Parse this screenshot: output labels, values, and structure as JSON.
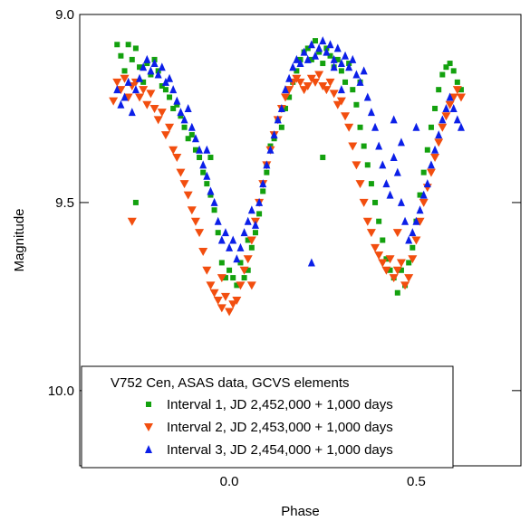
{
  "chart_data": {
    "type": "scatter",
    "title": "",
    "xlabel": "Phase",
    "ylabel": "Magnitude",
    "xlim": [
      -0.4,
      0.78
    ],
    "ylim": [
      9.0,
      10.2
    ],
    "y_inverted": true,
    "x_ticks": [
      {
        "value": 0.0,
        "label": "0.0"
      },
      {
        "value": 0.5,
        "label": "0.5"
      }
    ],
    "y_ticks": [
      {
        "value": 9.0,
        "label": "9.0"
      },
      {
        "value": 9.5,
        "label": "9.5"
      },
      {
        "value": 10.0,
        "label": "10.0"
      }
    ],
    "grid": false,
    "legend": {
      "placement": "bottom-center",
      "title": "V752 Cen, ASAS data, GCVS elements"
    },
    "series": [
      {
        "name": "Interval 1, JD 2,452,000 + 1,000 days",
        "marker": "square",
        "color": "#13a10e",
        "points": [
          [
            -0.3,
            9.08
          ],
          [
            -0.29,
            9.11
          ],
          [
            -0.28,
            9.15
          ],
          [
            -0.27,
            9.08
          ],
          [
            -0.26,
            9.12
          ],
          [
            -0.25,
            9.09
          ],
          [
            -0.24,
            9.14
          ],
          [
            -0.23,
            9.18
          ],
          [
            -0.22,
            9.13
          ],
          [
            -0.21,
            9.16
          ],
          [
            -0.2,
            9.12
          ],
          [
            -0.19,
            9.15
          ],
          [
            -0.18,
            9.19
          ],
          [
            -0.17,
            9.2
          ],
          [
            -0.16,
            9.22
          ],
          [
            -0.15,
            9.25
          ],
          [
            -0.14,
            9.24
          ],
          [
            -0.13,
            9.27
          ],
          [
            -0.12,
            9.3
          ],
          [
            -0.11,
            9.33
          ],
          [
            -0.1,
            9.32
          ],
          [
            -0.09,
            9.36
          ],
          [
            -0.08,
            9.38
          ],
          [
            -0.07,
            9.42
          ],
          [
            -0.06,
            9.45
          ],
          [
            -0.05,
            9.48
          ],
          [
            -0.04,
            9.52
          ],
          [
            -0.03,
            9.58
          ],
          [
            -0.02,
            9.66
          ],
          [
            -0.01,
            9.7
          ],
          [
            0.0,
            9.68
          ],
          [
            0.01,
            9.7
          ],
          [
            0.02,
            9.72
          ],
          [
            0.03,
            9.66
          ],
          [
            0.04,
            9.7
          ],
          [
            0.05,
            9.68
          ],
          [
            0.06,
            9.62
          ],
          [
            0.07,
            9.58
          ],
          [
            0.08,
            9.53
          ],
          [
            0.09,
            9.47
          ],
          [
            0.1,
            9.4
          ],
          [
            0.11,
            9.35
          ],
          [
            0.12,
            9.33
          ],
          [
            0.13,
            9.28
          ],
          [
            0.14,
            9.3
          ],
          [
            0.15,
            9.25
          ],
          [
            0.16,
            9.22
          ],
          [
            0.17,
            9.18
          ],
          [
            0.18,
            9.15
          ],
          [
            0.19,
            9.12
          ],
          [
            0.2,
            9.1
          ],
          [
            0.21,
            9.09
          ],
          [
            0.22,
            9.12
          ],
          [
            0.23,
            9.07
          ],
          [
            0.24,
            9.1
          ],
          [
            0.25,
            9.13
          ],
          [
            0.26,
            9.09
          ],
          [
            0.27,
            9.11
          ],
          [
            0.28,
            9.14
          ],
          [
            0.29,
            9.12
          ],
          [
            0.3,
            9.15
          ],
          [
            0.31,
            9.18
          ],
          [
            0.32,
            9.13
          ],
          [
            0.33,
            9.2
          ],
          [
            0.34,
            9.24
          ],
          [
            0.35,
            9.3
          ],
          [
            0.36,
            9.35
          ],
          [
            0.37,
            9.4
          ],
          [
            0.38,
            9.45
          ],
          [
            0.39,
            9.5
          ],
          [
            0.4,
            9.55
          ],
          [
            0.41,
            9.6
          ],
          [
            0.42,
            9.65
          ],
          [
            0.43,
            9.68
          ],
          [
            0.44,
            9.7
          ],
          [
            0.45,
            9.74
          ],
          [
            0.46,
            9.68
          ],
          [
            0.47,
            9.72
          ],
          [
            0.48,
            9.66
          ],
          [
            0.49,
            9.62
          ],
          [
            0.5,
            9.55
          ],
          [
            0.51,
            9.48
          ],
          [
            0.52,
            9.42
          ],
          [
            0.53,
            9.36
          ],
          [
            0.54,
            9.3
          ],
          [
            0.55,
            9.25
          ],
          [
            0.56,
            9.2
          ],
          [
            0.57,
            9.16
          ],
          [
            0.58,
            9.14
          ],
          [
            0.59,
            9.13
          ],
          [
            0.6,
            9.15
          ],
          [
            0.61,
            9.18
          ],
          [
            0.62,
            9.2
          ],
          [
            -0.25,
            9.5
          ],
          [
            0.25,
            9.38
          ],
          [
            0.1,
            9.42
          ],
          [
            0.05,
            9.6
          ],
          [
            -0.05,
            9.38
          ],
          [
            0.35,
            9.18
          ]
        ]
      },
      {
        "name": "Interval 2, JD 2,453,000 + 1,000 days",
        "marker": "triangle-down",
        "color": "#f24e0f",
        "points": [
          [
            -0.31,
            9.23
          ],
          [
            -0.3,
            9.18
          ],
          [
            -0.29,
            9.2
          ],
          [
            -0.28,
            9.17
          ],
          [
            -0.27,
            9.22
          ],
          [
            -0.26,
            9.19
          ],
          [
            -0.25,
            9.18
          ],
          [
            -0.24,
            9.22
          ],
          [
            -0.23,
            9.2
          ],
          [
            -0.22,
            9.24
          ],
          [
            -0.21,
            9.21
          ],
          [
            -0.2,
            9.25
          ],
          [
            -0.19,
            9.28
          ],
          [
            -0.18,
            9.26
          ],
          [
            -0.17,
            9.32
          ],
          [
            -0.16,
            9.3
          ],
          [
            -0.15,
            9.36
          ],
          [
            -0.14,
            9.38
          ],
          [
            -0.13,
            9.42
          ],
          [
            -0.12,
            9.45
          ],
          [
            -0.11,
            9.48
          ],
          [
            -0.1,
            9.52
          ],
          [
            -0.09,
            9.55
          ],
          [
            -0.08,
            9.58
          ],
          [
            -0.07,
            9.63
          ],
          [
            -0.06,
            9.68
          ],
          [
            -0.05,
            9.72
          ],
          [
            -0.04,
            9.74
          ],
          [
            -0.03,
            9.76
          ],
          [
            -0.02,
            9.78
          ],
          [
            -0.01,
            9.75
          ],
          [
            0.0,
            9.79
          ],
          [
            0.01,
            9.77
          ],
          [
            0.02,
            9.76
          ],
          [
            0.03,
            9.72
          ],
          [
            0.04,
            9.68
          ],
          [
            0.05,
            9.65
          ],
          [
            0.06,
            9.6
          ],
          [
            0.07,
            9.55
          ],
          [
            0.08,
            9.5
          ],
          [
            0.09,
            9.45
          ],
          [
            0.1,
            9.4
          ],
          [
            0.11,
            9.36
          ],
          [
            0.12,
            9.32
          ],
          [
            0.13,
            9.28
          ],
          [
            0.14,
            9.25
          ],
          [
            0.15,
            9.22
          ],
          [
            0.16,
            9.2
          ],
          [
            0.17,
            9.18
          ],
          [
            0.18,
            9.17
          ],
          [
            0.19,
            9.18
          ],
          [
            0.2,
            9.2
          ],
          [
            0.21,
            9.19
          ],
          [
            0.22,
            9.17
          ],
          [
            0.23,
            9.18
          ],
          [
            0.24,
            9.16
          ],
          [
            0.25,
            9.19
          ],
          [
            0.26,
            9.2
          ],
          [
            0.27,
            9.18
          ],
          [
            0.28,
            9.21
          ],
          [
            0.29,
            9.24
          ],
          [
            0.3,
            9.23
          ],
          [
            0.31,
            9.27
          ],
          [
            0.32,
            9.3
          ],
          [
            0.33,
            9.35
          ],
          [
            0.34,
            9.4
          ],
          [
            0.35,
            9.45
          ],
          [
            0.36,
            9.5
          ],
          [
            0.37,
            9.55
          ],
          [
            0.38,
            9.58
          ],
          [
            0.39,
            9.62
          ],
          [
            0.4,
            9.64
          ],
          [
            0.41,
            9.66
          ],
          [
            0.42,
            9.68
          ],
          [
            0.43,
            9.65
          ],
          [
            0.44,
            9.7
          ],
          [
            0.45,
            9.68
          ],
          [
            0.46,
            9.66
          ],
          [
            0.47,
            9.72
          ],
          [
            0.48,
            9.7
          ],
          [
            0.49,
            9.65
          ],
          [
            0.5,
            9.6
          ],
          [
            0.51,
            9.55
          ],
          [
            0.52,
            9.5
          ],
          [
            0.53,
            9.46
          ],
          [
            0.54,
            9.42
          ],
          [
            0.55,
            9.38
          ],
          [
            0.56,
            9.34
          ],
          [
            0.57,
            9.3
          ],
          [
            0.58,
            9.27
          ],
          [
            0.59,
            9.24
          ],
          [
            0.6,
            9.22
          ],
          [
            0.61,
            9.2
          ],
          [
            0.62,
            9.22
          ],
          [
            -0.26,
            9.55
          ],
          [
            0.4,
            9.96
          ],
          [
            0.06,
            9.72
          ],
          [
            -0.02,
            9.7
          ],
          [
            0.45,
            9.58
          ]
        ]
      },
      {
        "name": "Interval 3, JD 2,454,000 + 1,000 days",
        "marker": "triangle-up",
        "color": "#0b1fe8",
        "points": [
          [
            -0.3,
            9.2
          ],
          [
            -0.29,
            9.24
          ],
          [
            -0.28,
            9.22
          ],
          [
            -0.27,
            9.18
          ],
          [
            -0.26,
            9.26
          ],
          [
            -0.25,
            9.2
          ],
          [
            -0.24,
            9.17
          ],
          [
            -0.23,
            9.14
          ],
          [
            -0.22,
            9.12
          ],
          [
            -0.21,
            9.15
          ],
          [
            -0.2,
            9.13
          ],
          [
            -0.19,
            9.16
          ],
          [
            -0.18,
            9.14
          ],
          [
            -0.17,
            9.18
          ],
          [
            -0.16,
            9.17
          ],
          [
            -0.15,
            9.2
          ],
          [
            -0.14,
            9.23
          ],
          [
            -0.13,
            9.26
          ],
          [
            -0.12,
            9.28
          ],
          [
            -0.11,
            9.25
          ],
          [
            -0.1,
            9.3
          ],
          [
            -0.09,
            9.33
          ],
          [
            -0.08,
            9.36
          ],
          [
            -0.07,
            9.4
          ],
          [
            -0.06,
            9.43
          ],
          [
            -0.05,
            9.47
          ],
          [
            -0.04,
            9.5
          ],
          [
            -0.03,
            9.55
          ],
          [
            -0.02,
            9.6
          ],
          [
            -0.01,
            9.58
          ],
          [
            0.0,
            9.62
          ],
          [
            0.01,
            9.6
          ],
          [
            0.02,
            9.65
          ],
          [
            0.03,
            9.62
          ],
          [
            0.04,
            9.58
          ],
          [
            0.05,
            9.55
          ],
          [
            0.06,
            9.52
          ],
          [
            0.07,
            9.56
          ],
          [
            0.08,
            9.5
          ],
          [
            0.09,
            9.45
          ],
          [
            0.1,
            9.4
          ],
          [
            0.11,
            9.36
          ],
          [
            0.12,
            9.32
          ],
          [
            0.13,
            9.28
          ],
          [
            0.14,
            9.25
          ],
          [
            0.15,
            9.2
          ],
          [
            0.16,
            9.17
          ],
          [
            0.17,
            9.14
          ],
          [
            0.18,
            9.12
          ],
          [
            0.19,
            9.13
          ],
          [
            0.2,
            9.1
          ],
          [
            0.21,
            9.12
          ],
          [
            0.22,
            9.08
          ],
          [
            0.23,
            9.11
          ],
          [
            0.24,
            9.09
          ],
          [
            0.25,
            9.07
          ],
          [
            0.26,
            9.1
          ],
          [
            0.27,
            9.08
          ],
          [
            0.28,
            9.12
          ],
          [
            0.29,
            9.09
          ],
          [
            0.3,
            9.13
          ],
          [
            0.31,
            9.11
          ],
          [
            0.32,
            9.14
          ],
          [
            0.33,
            9.12
          ],
          [
            0.34,
            9.16
          ],
          [
            0.35,
            9.18
          ],
          [
            0.36,
            9.15
          ],
          [
            0.37,
            9.22
          ],
          [
            0.38,
            9.26
          ],
          [
            0.39,
            9.3
          ],
          [
            0.4,
            9.35
          ],
          [
            0.41,
            9.4
          ],
          [
            0.42,
            9.45
          ],
          [
            0.43,
            9.48
          ],
          [
            0.44,
            9.38
          ],
          [
            0.45,
            9.42
          ],
          [
            0.46,
            9.5
          ],
          [
            0.47,
            9.55
          ],
          [
            0.48,
            9.6
          ],
          [
            0.49,
            9.58
          ],
          [
            0.5,
            9.55
          ],
          [
            0.51,
            9.52
          ],
          [
            0.52,
            9.48
          ],
          [
            0.53,
            9.45
          ],
          [
            0.54,
            9.4
          ],
          [
            0.55,
            9.36
          ],
          [
            0.56,
            9.32
          ],
          [
            0.57,
            9.28
          ],
          [
            0.58,
            9.25
          ],
          [
            0.59,
            9.22
          ],
          [
            0.6,
            9.25
          ],
          [
            0.61,
            9.28
          ],
          [
            0.62,
            9.3
          ],
          [
            0.46,
            9.34
          ],
          [
            0.5,
            9.3
          ],
          [
            0.22,
            9.66
          ],
          [
            0.3,
            9.2
          ],
          [
            0.44,
            9.28
          ],
          [
            0.28,
            9.14
          ],
          [
            -0.06,
            9.36
          ]
        ]
      }
    ]
  }
}
